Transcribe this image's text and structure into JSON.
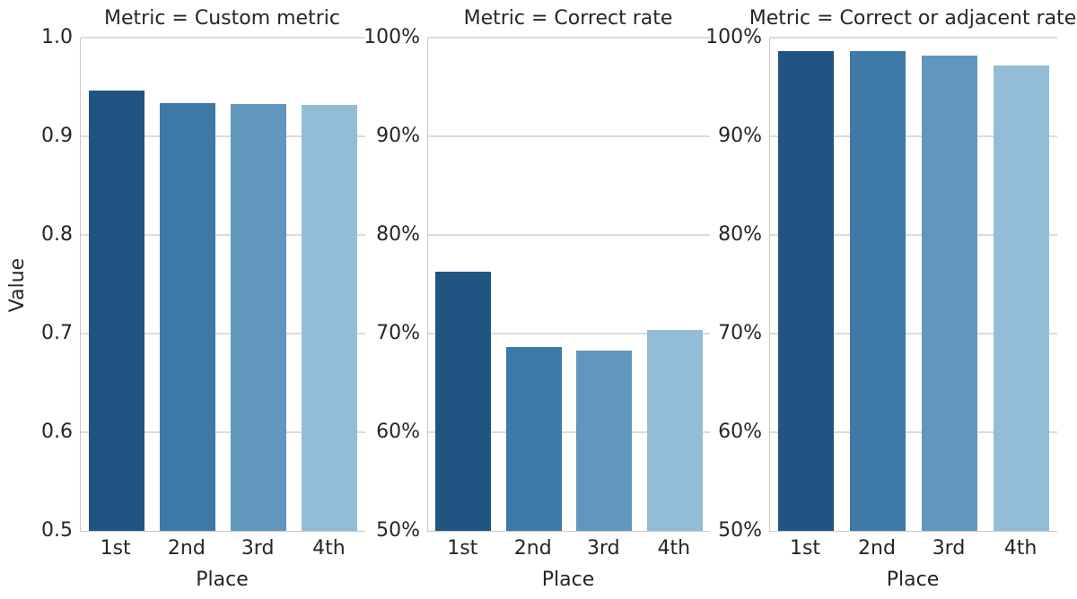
{
  "chart_data": {
    "type": "bar",
    "xlabel": "Place",
    "ylabel": "Value",
    "categories": [
      "1st",
      "2nd",
      "3rd",
      "4th"
    ],
    "ylim": [
      0.5,
      1.0
    ],
    "grid": true,
    "legend": "none",
    "bar_colors": [
      "#215480",
      "#3d7aa8",
      "#6197bd",
      "#93bdd7"
    ],
    "facets": [
      {
        "title": "Metric = Custom metric",
        "value_format": "decimal",
        "yticks": [
          "1.0",
          "0.9",
          "0.8",
          "0.7",
          "0.6",
          "0.5"
        ],
        "values": [
          0.946,
          0.934,
          0.933,
          0.932
        ]
      },
      {
        "title": "Metric = Correct rate",
        "value_format": "percent",
        "yticks": [
          "100%",
          "90%",
          "80%",
          "70%",
          "60%",
          "50%"
        ],
        "values": [
          76.3,
          68.6,
          68.3,
          70.4
        ]
      },
      {
        "title": "Metric = Correct or adjacent rate",
        "value_format": "percent",
        "yticks": [
          "100%",
          "90%",
          "80%",
          "70%",
          "60%",
          "50%"
        ],
        "values": [
          98.6,
          98.6,
          98.2,
          97.2
        ]
      }
    ]
  },
  "colors": {
    "background": "#ffffff",
    "text": "#262626",
    "grid": "#dcdcdc",
    "spine": "#c9c9c9"
  }
}
